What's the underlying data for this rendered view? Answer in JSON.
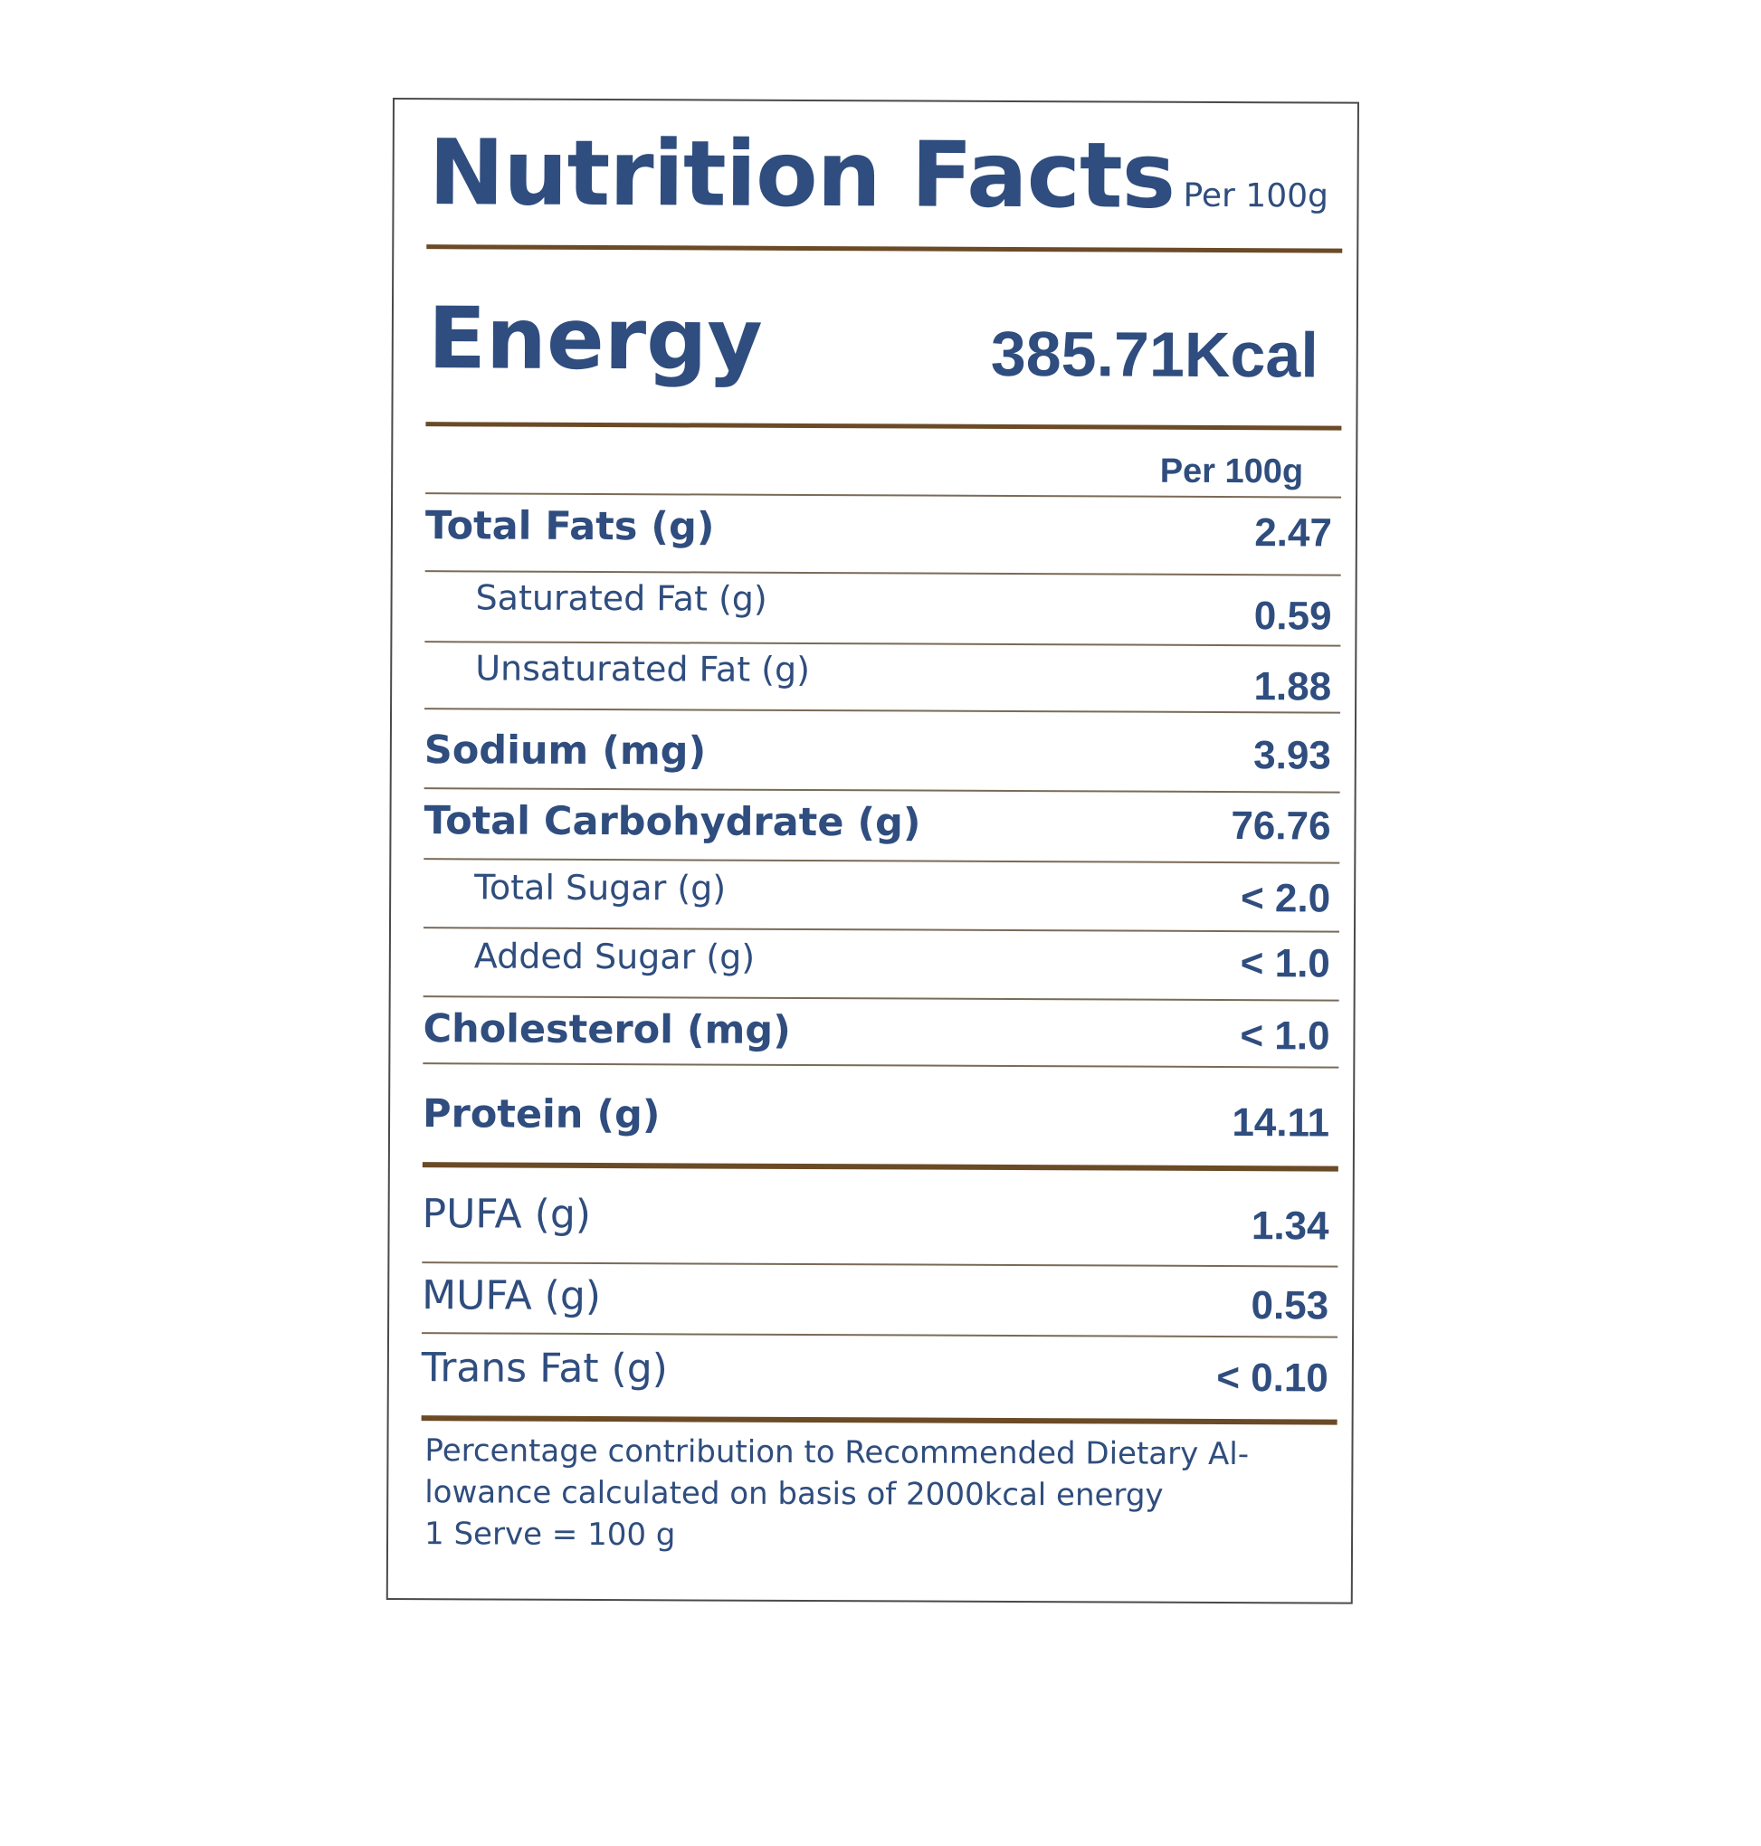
{
  "header": {
    "title": "Nutrition Facts",
    "per_label": "Per 100g"
  },
  "energy": {
    "label": "Energy",
    "value": "385.71Kcal"
  },
  "table": {
    "column_header": "Per 100g",
    "rows": [
      {
        "name": "Total Fats  (g)",
        "value": "2.47"
      },
      {
        "name": "Saturated Fat  (g)",
        "value": "0.59"
      },
      {
        "name": "Unsaturated Fat  (g)",
        "value": "1.88"
      },
      {
        "name": "Sodium  (mg)",
        "value": "3.93"
      },
      {
        "name": "Total Carbohydrate     (g)",
        "value": "76.76"
      },
      {
        "name": "Total Sugar  (g)",
        "value": "< 2.0"
      },
      {
        "name": "Added Sugar  (g)",
        "value": "< 1.0"
      },
      {
        "name": "Cholesterol  (mg)",
        "value": "< 1.0"
      },
      {
        "name": "Protein (g)",
        "value": "14.11"
      },
      {
        "name": "PUFA  (g)",
        "value": "1.34"
      },
      {
        "name": "MUFA  (g)",
        "value": "0.53"
      },
      {
        "name": "Trans Fat (g)",
        "value": "< 0.10"
      }
    ]
  },
  "footnote": {
    "line1": "Percentage contribution to Recommended Dietary Al-",
    "line2": "lowance calculated on basis of 2000kcal energy",
    "line3": "1 Serve = 100 g"
  },
  "colors": {
    "text": "#2f4d7e",
    "rule": "#6b4a26"
  }
}
